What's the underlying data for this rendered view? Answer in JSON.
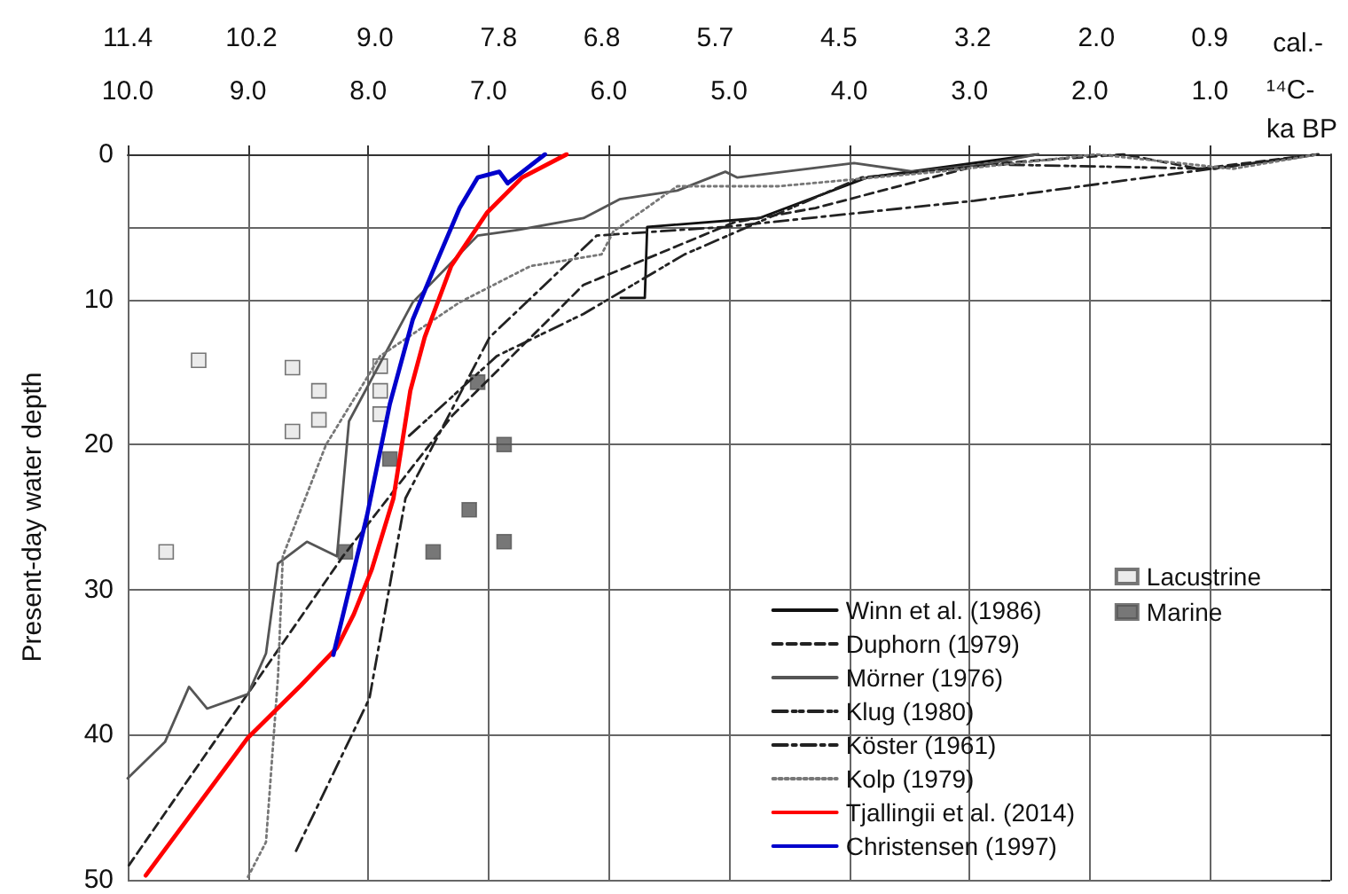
{
  "chart_data": {
    "type": "line",
    "ylabel": "Present-day water depth",
    "xlabel": "¹⁴C-\nka BP",
    "x2label": "cal.-",
    "xlim": [
      10,
      0
    ],
    "xticks": [
      {
        "value": 10,
        "label": "10.0"
      },
      {
        "value": 9,
        "label": "9.0"
      },
      {
        "value": 8,
        "label": "8.0"
      },
      {
        "value": 7,
        "label": "7.0"
      },
      {
        "value": 6,
        "label": "6.0"
      },
      {
        "value": 5,
        "label": "5.0"
      },
      {
        "value": 4,
        "label": "4.0"
      },
      {
        "value": 3,
        "label": "3.0"
      },
      {
        "value": 2,
        "label": "2.0"
      },
      {
        "value": 1,
        "label": "1.0"
      }
    ],
    "x2lim": [
      11.4,
      -0.27
    ],
    "x2ticks": [
      11.4,
      10.2,
      {
        "value": 9,
        "label": "9.0"
      },
      7.8,
      6.8,
      5.7,
      4.5,
      3.2,
      {
        "value": 2,
        "label": "2.0"
      },
      0.9
    ],
    "ylim": [
      50,
      0
    ],
    "yticks": [
      0,
      {
        "value": 5,
        "label": null
      },
      10,
      20,
      30,
      40,
      50
    ],
    "grid": true,
    "legend": "bottom right",
    "marker": "none",
    "series": [
      {
        "name": "Winn et al. (1986)",
        "color": "#111111",
        "line_style": "solid",
        "x": [
          5.9,
          5.7,
          5.68,
          4.75,
          3.85,
          2.43
        ],
        "values": [
          9.9,
          9.9,
          5.0,
          4.4,
          1.6,
          0
        ]
      },
      {
        "name": "Duphorn (1979)",
        "color": "#222222",
        "line_style": "dashed",
        "x": [
          9.99,
          8.21,
          7.3,
          6.21,
          4.96,
          4.28,
          2.9,
          1.72,
          1.09,
          0.1
        ],
        "values": [
          49,
          27.7,
          18,
          9,
          4.7,
          3.7,
          0.7,
          0,
          1,
          0
        ]
      },
      {
        "name": "Mörner (1976)",
        "color": "#555555",
        "line_style": "solid",
        "x": [
          10,
          9.69,
          9.49,
          9.34,
          9.0,
          8.85,
          8.75,
          8.51,
          8.26,
          8.16,
          7.63,
          7.09,
          6.75,
          6.21,
          5.91,
          5.43,
          5.03,
          4.93,
          3.96,
          3.46,
          2.87,
          2.43
        ],
        "values": [
          43,
          40.5,
          36.7,
          38.2,
          37.2,
          34.4,
          28.2,
          26.7,
          27.7,
          18.4,
          10.2,
          5.6,
          5.2,
          4.4,
          3.1,
          2.5,
          1.2,
          1.6,
          0.6,
          1.2,
          0.7,
          0
        ]
      },
      {
        "name": "Klug (1980)",
        "color": "#222222",
        "line_style": "dashdotdot",
        "x": [
          7.66,
          6.93,
          6.21,
          5.37,
          3.9,
          2.78,
          0.96,
          0.1
        ],
        "values": [
          19.4,
          13.9,
          11,
          6.9,
          1.6,
          0.7,
          1,
          0
        ]
      },
      {
        "name": "Köster (1961)",
        "color": "#222222",
        "line_style": "dashdot",
        "x": [
          8.6,
          7.99,
          7.69,
          6.99,
          6.1,
          5.03,
          2.96,
          0.1
        ],
        "values": [
          48,
          37.5,
          23.7,
          12.6,
          5.6,
          5,
          3.2,
          0
        ]
      },
      {
        "name": "Kolp (1979)",
        "color": "#777777",
        "line_style": "dotted",
        "x": [
          9.0,
          8.85,
          8.75,
          8.71,
          8.35,
          7.9,
          7.24,
          6.65,
          6.06,
          5.96,
          5.43,
          4.59,
          3.26,
          1.94,
          0.81,
          0.1
        ],
        "values": [
          49.8,
          47.4,
          36,
          27.7,
          20,
          13.9,
          10.2,
          7.7,
          6.9,
          5.3,
          2.2,
          2.2,
          1.2,
          0,
          1,
          0
        ]
      },
      {
        "name": "Tjallingii et al. (2014)",
        "color": "#ff0000",
        "line_style": "solid",
        "x": [
          9.85,
          9.0,
          8.56,
          8.26,
          8.12,
          7.97,
          7.79,
          7.65,
          7.53,
          7.31,
          7.01,
          6.72,
          6.35
        ],
        "values": [
          49.7,
          40.2,
          36.6,
          34,
          31.7,
          28.6,
          23.7,
          16.3,
          12.6,
          7.7,
          4,
          1.6,
          0
        ]
      },
      {
        "name": "Christensen (1997)",
        "color": "#0000cc",
        "line_style": "solid",
        "x": [
          8.29,
          8.01,
          7.82,
          7.63,
          7.43,
          7.24,
          7.09,
          6.91,
          6.84,
          6.53
        ],
        "values": [
          34.5,
          24.9,
          17.2,
          11.4,
          7.4,
          3.7,
          1.6,
          1.2,
          2,
          0
        ]
      },
      {
        "name": "Lacustrine",
        "type": "scatter",
        "marker": "square",
        "color": "#e6e6e6",
        "x": [
          9.41,
          8.63,
          8.41,
          8.41,
          7.9,
          7.9,
          7.9,
          8.63,
          9.68
        ],
        "values": [
          14.2,
          14.7,
          16.3,
          18.3,
          14.6,
          16.3,
          17.9,
          19.1,
          27.4
        ]
      },
      {
        "name": "Marine",
        "type": "scatter",
        "marker": "square",
        "color": "#555555",
        "x": [
          7.82,
          7.09,
          6.87,
          7.46,
          7.16,
          6.87,
          8.19
        ],
        "values": [
          21,
          15.7,
          20,
          27.4,
          24.5,
          26.7,
          27.4
        ]
      }
    ]
  }
}
